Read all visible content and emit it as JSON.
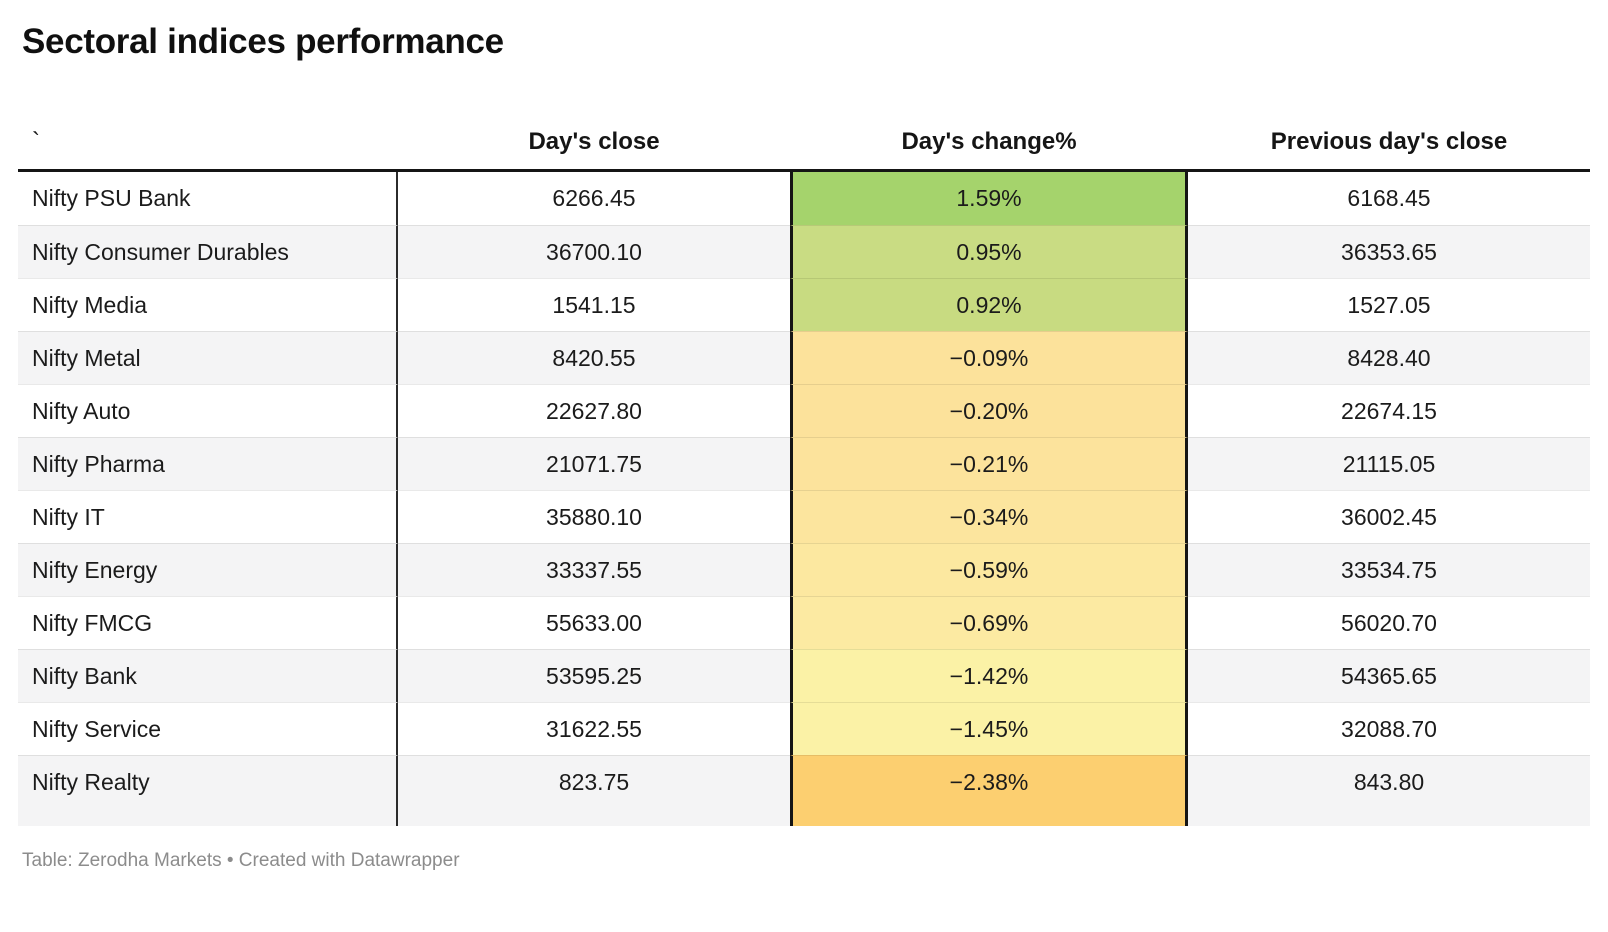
{
  "title": "Sectoral indices performance",
  "chart_data": {
    "type": "table",
    "title": "Sectoral indices performance",
    "columns": [
      "`",
      "Day's close",
      "Day's change%",
      "Previous day's close"
    ],
    "rows": [
      {
        "name": "Nifty PSU Bank",
        "close": "6266.45",
        "change": "1.59%",
        "prev": "6168.45",
        "color": "#a5d36c"
      },
      {
        "name": "Nifty Consumer Durables",
        "close": "36700.10",
        "change": "0.95%",
        "prev": "36353.65",
        "color": "#c9dc83"
      },
      {
        "name": "Nifty Media",
        "close": "1541.15",
        "change": "0.92%",
        "prev": "1527.05",
        "color": "#c8db81"
      },
      {
        "name": "Nifty Metal",
        "close": "8420.55",
        "change": "−0.09%",
        "prev": "8428.40",
        "color": "#fce29b"
      },
      {
        "name": "Nifty Auto",
        "close": "22627.80",
        "change": "−0.20%",
        "prev": "22674.15",
        "color": "#fce29b"
      },
      {
        "name": "Nifty Pharma",
        "close": "21071.75",
        "change": "−0.21%",
        "prev": "21115.05",
        "color": "#fce39c"
      },
      {
        "name": "Nifty IT",
        "close": "35880.10",
        "change": "−0.34%",
        "prev": "36002.45",
        "color": "#fce59e"
      },
      {
        "name": "Nifty Energy",
        "close": "33337.55",
        "change": "−0.59%",
        "prev": "33534.75",
        "color": "#fce8a0"
      },
      {
        "name": "Nifty FMCG",
        "close": "55633.00",
        "change": "−0.69%",
        "prev": "56020.70",
        "color": "#fceaa2"
      },
      {
        "name": "Nifty Bank",
        "close": "53595.25",
        "change": "−1.42%",
        "prev": "54365.65",
        "color": "#fbf2a6"
      },
      {
        "name": "Nifty Service",
        "close": "31622.55",
        "change": "−1.45%",
        "prev": "32088.70",
        "color": "#fbf2a6"
      },
      {
        "name": "Nifty Realty",
        "close": "823.75",
        "change": "−2.38%",
        "prev": "843.80",
        "color": "#fccf70"
      }
    ],
    "legend": "none",
    "grid": "row dividers only"
  },
  "footer": "Table: Zerodha Markets • Created with Datawrapper",
  "colors": {
    "header_rule": "#151515",
    "column_divider": "#2b2b2b",
    "row_stripe": "#f4f4f5",
    "positive_max": "#a5d36c",
    "negative_max": "#fccf70",
    "footer_text": "#8c8c8c"
  }
}
